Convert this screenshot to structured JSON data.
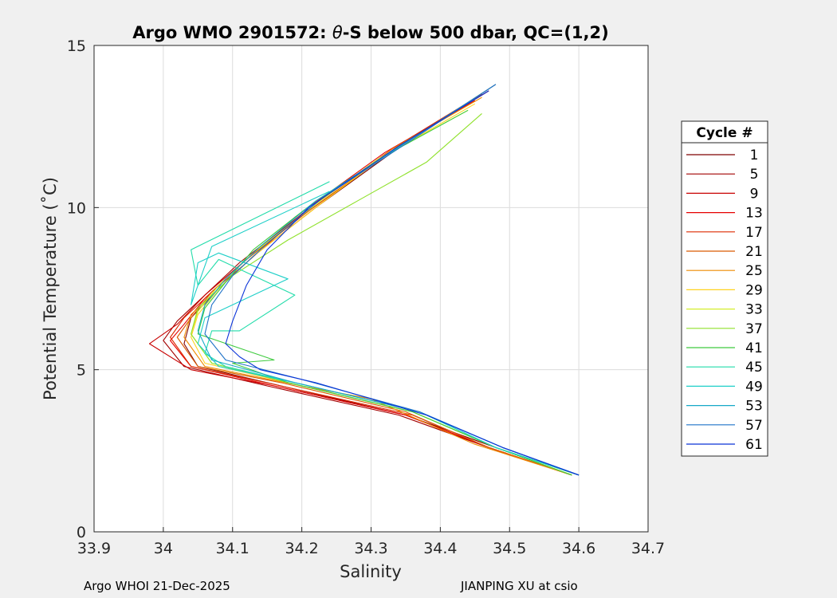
{
  "chart_data": {
    "type": "line",
    "title_prefix": "Argo WMO 2901572: ",
    "title_theta": "θ",
    "title_suffix": "-S below 500 dbar,  QC=(1,2)",
    "xlabel": "Salinity",
    "ylabel": "Potential Temperature (˚C)",
    "xlim": [
      33.9,
      34.7
    ],
    "ylim": [
      0,
      15
    ],
    "xticks": [
      "33.9",
      "34",
      "34.1",
      "34.2",
      "34.3",
      "34.4",
      "34.5",
      "34.6",
      "34.7"
    ],
    "xtick_values": [
      33.9,
      34.0,
      34.1,
      34.2,
      34.3,
      34.4,
      34.5,
      34.6,
      34.7
    ],
    "yticks": [
      "0",
      "5",
      "10",
      "15"
    ],
    "ytick_values": [
      0,
      5,
      10,
      15
    ],
    "grid": true,
    "legend": {
      "title": "Cycle #",
      "placement": "outside-right",
      "entries": [
        "1",
        "5",
        "9",
        "13",
        "17",
        "21",
        "25",
        "29",
        "33",
        "37",
        "41",
        "45",
        "49",
        "53",
        "57",
        "61"
      ],
      "colors": [
        "#7f0000",
        "#a30000",
        "#c80000",
        "#e60000",
        "#dd2a00",
        "#d95a00",
        "#ee8a00",
        "#ffd21f",
        "#d4ee2a",
        "#8fe12b",
        "#3ecb3e",
        "#22dcaa",
        "#1ecfc8",
        "#16a9c8",
        "#1f73c8",
        "#0a33d8"
      ]
    },
    "series": [
      {
        "name": "1",
        "color": "#7f0000",
        "x": [
          34.48,
          34.35,
          34.22,
          34.13,
          34.08,
          34.04,
          34.03,
          34.05,
          34.17,
          34.35,
          34.48,
          34.6
        ],
        "y": [
          13.8,
          12.0,
          10.0,
          8.5,
          7.5,
          6.6,
          5.8,
          5.1,
          4.5,
          3.6,
          2.6,
          1.75
        ]
      },
      {
        "name": "5",
        "color": "#a30000",
        "x": [
          34.46,
          34.33,
          34.2,
          34.11,
          34.06,
          34.02,
          34.0,
          34.03,
          34.15,
          34.34,
          34.47,
          34.59
        ],
        "y": [
          13.5,
          11.8,
          9.8,
          8.3,
          7.3,
          6.5,
          5.9,
          5.1,
          4.5,
          3.6,
          2.6,
          1.75
        ]
      },
      {
        "name": "9",
        "color": "#c80000",
        "x": [
          34.47,
          34.34,
          34.21,
          34.12,
          34.06,
          34.02,
          33.98,
          34.04,
          34.16,
          34.35,
          34.47,
          34.59
        ],
        "y": [
          13.6,
          11.9,
          9.9,
          8.4,
          7.3,
          6.4,
          5.8,
          5.0,
          4.5,
          3.6,
          2.6,
          1.75
        ]
      },
      {
        "name": "13",
        "color": "#e60000",
        "x": [
          34.45,
          34.32,
          34.19,
          34.11,
          34.06,
          34.03,
          34.01,
          34.04,
          34.16,
          34.35,
          34.47,
          34.59
        ],
        "y": [
          13.3,
          11.7,
          9.7,
          8.2,
          7.2,
          6.4,
          5.9,
          5.1,
          4.5,
          3.6,
          2.6,
          1.75
        ]
      },
      {
        "name": "17",
        "color": "#dd2a00",
        "x": [
          34.46,
          34.33,
          34.2,
          34.12,
          34.07,
          34.03,
          34.01,
          34.04,
          34.17,
          34.36,
          34.47,
          34.59
        ],
        "y": [
          13.5,
          11.8,
          9.8,
          8.3,
          7.4,
          6.6,
          6.0,
          5.1,
          4.5,
          3.6,
          2.6,
          1.75
        ]
      },
      {
        "name": "21",
        "color": "#d95a00",
        "x": [
          34.47,
          34.34,
          34.21,
          34.12,
          34.07,
          34.04,
          34.02,
          34.05,
          34.17,
          34.35,
          34.47,
          34.59
        ],
        "y": [
          13.6,
          11.9,
          9.9,
          8.4,
          7.4,
          6.6,
          6.0,
          5.1,
          4.6,
          3.7,
          2.6,
          1.75
        ]
      },
      {
        "name": "25",
        "color": "#ee8a00",
        "x": [
          34.46,
          34.33,
          34.22,
          34.13,
          34.08,
          34.04,
          34.03,
          34.06,
          34.2,
          34.3,
          34.45,
          34.59
        ],
        "y": [
          13.4,
          11.8,
          10.0,
          8.5,
          7.5,
          6.7,
          6.0,
          5.1,
          4.5,
          4.1,
          2.7,
          1.75
        ]
      },
      {
        "name": "29",
        "color": "#ffd21f",
        "x": [
          34.45,
          34.32,
          34.22,
          34.13,
          34.08,
          34.05,
          34.04,
          34.06,
          34.18,
          34.36,
          34.48,
          34.6
        ],
        "y": [
          13.2,
          11.6,
          10.0,
          8.5,
          7.5,
          6.7,
          6.0,
          5.2,
          4.6,
          3.7,
          2.6,
          1.75
        ]
      },
      {
        "name": "33",
        "color": "#d4ee2a",
        "x": [
          34.44,
          34.31,
          34.22,
          34.13,
          34.08,
          34.05,
          34.04,
          34.07,
          34.18,
          34.36,
          34.48,
          34.6
        ],
        "y": [
          13.0,
          11.5,
          10.1,
          8.6,
          7.6,
          6.8,
          6.1,
          5.2,
          4.6,
          3.7,
          2.6,
          1.75
        ]
      },
      {
        "name": "37",
        "color": "#8fe12b",
        "x": [
          34.46,
          34.38,
          34.28,
          34.18,
          34.1,
          34.05,
          34.04,
          34.07,
          34.18,
          34.36,
          34.48,
          34.59
        ],
        "y": [
          12.9,
          11.4,
          10.2,
          9.0,
          7.9,
          6.9,
          6.1,
          5.2,
          4.6,
          3.7,
          2.6,
          1.75
        ]
      },
      {
        "name": "41",
        "color": "#3ecb3e",
        "x": [
          34.44,
          34.32,
          34.22,
          34.13,
          34.09,
          34.06,
          34.05,
          34.16,
          34.1,
          34.18,
          34.36,
          34.48,
          34.59
        ],
        "y": [
          13.0,
          11.6,
          10.2,
          8.7,
          7.7,
          6.9,
          6.1,
          5.3,
          5.2,
          4.6,
          3.7,
          2.6,
          1.75
        ]
      },
      {
        "name": "45",
        "color": "#22dcaa",
        "x": [
          34.24,
          34.04,
          34.05,
          34.08,
          34.19,
          34.11,
          34.07,
          34.06,
          34.09,
          34.19,
          34.37,
          34.48,
          34.6
        ],
        "y": [
          10.8,
          8.7,
          7.6,
          8.4,
          7.3,
          6.2,
          6.2,
          5.5,
          5.1,
          4.6,
          3.7,
          2.6,
          1.75
        ]
      },
      {
        "name": "49",
        "color": "#1ecfc8",
        "x": [
          34.24,
          34.07,
          34.04,
          34.05,
          34.08,
          34.18,
          34.06,
          34.05,
          34.08,
          34.19,
          34.37,
          34.48,
          34.6
        ],
        "y": [
          10.5,
          8.8,
          7.0,
          8.3,
          8.6,
          7.8,
          6.6,
          5.8,
          5.1,
          4.6,
          3.7,
          2.6,
          1.75
        ]
      },
      {
        "name": "53",
        "color": "#16a9c8",
        "x": [
          34.48,
          34.35,
          34.22,
          34.14,
          34.09,
          34.06,
          34.05,
          34.07,
          34.19,
          34.37,
          34.49,
          34.6
        ],
        "y": [
          13.8,
          12.0,
          10.2,
          8.8,
          7.8,
          7.0,
          6.2,
          5.3,
          4.6,
          3.7,
          2.6,
          1.75
        ]
      },
      {
        "name": "57",
        "color": "#1f73c8",
        "x": [
          34.48,
          34.36,
          34.23,
          34.15,
          34.1,
          34.07,
          34.06,
          34.09,
          34.2,
          34.37,
          34.49,
          34.6
        ],
        "y": [
          13.8,
          12.1,
          10.3,
          8.9,
          7.9,
          7.0,
          6.1,
          5.3,
          4.7,
          3.7,
          2.6,
          1.75
        ]
      },
      {
        "name": "61",
        "color": "#0a33d8",
        "x": [
          34.47,
          34.34,
          34.21,
          34.15,
          34.12,
          34.1,
          34.09,
          34.11,
          34.14,
          34.22,
          34.38,
          34.49,
          34.6
        ],
        "y": [
          13.6,
          11.9,
          10.0,
          8.7,
          7.6,
          6.5,
          5.8,
          5.4,
          5.0,
          4.6,
          3.6,
          2.6,
          1.75
        ]
      }
    ]
  },
  "footer": {
    "left": "Argo WHOI 21-Dec-2025",
    "right": "JIANPING XU at csio"
  }
}
